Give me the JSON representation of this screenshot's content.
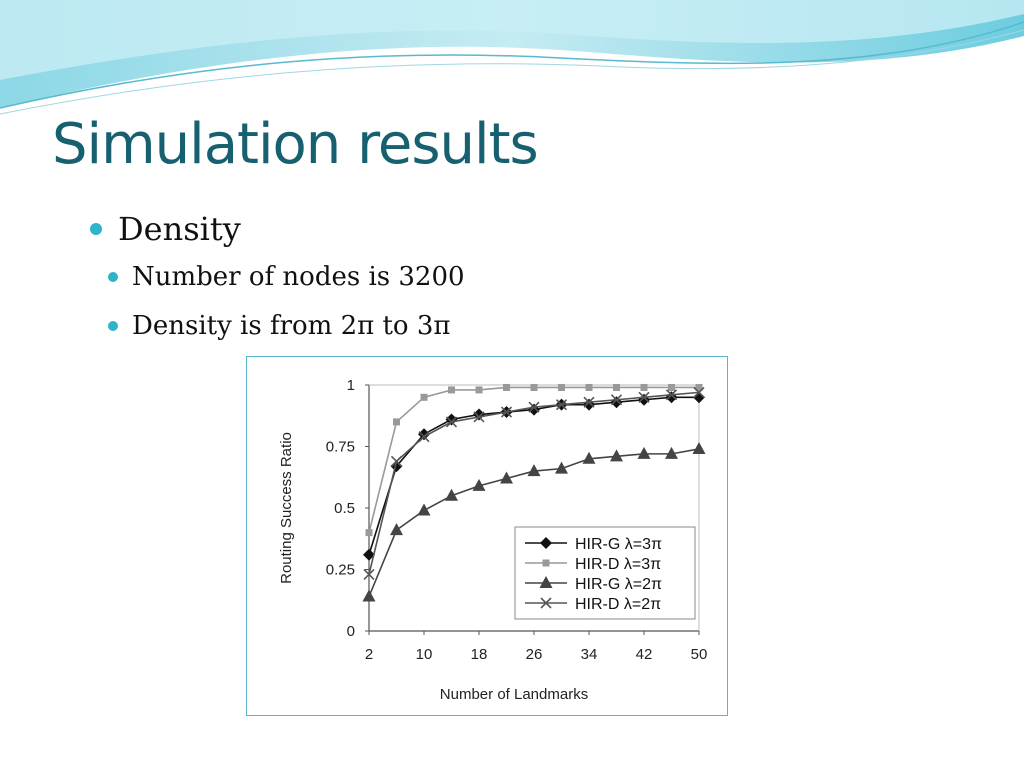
{
  "slide": {
    "title": "Simulation results",
    "bullets": {
      "main": "Density",
      "sub1": "Number of nodes is 3200",
      "sub2": "Density is from 2π to 3π"
    }
  },
  "colors": {
    "title": "#17606f",
    "bullet": "#2fb3c8",
    "frame": "#59b6cf"
  },
  "chart_data": {
    "type": "line",
    "xlabel": "Number of Landmarks",
    "ylabel": "Routing Success Ratio",
    "x_ticks": [
      "2",
      "10",
      "18",
      "26",
      "34",
      "42",
      "50"
    ],
    "y_ticks": [
      "0",
      "0.25",
      "0.5",
      "0.75",
      "1"
    ],
    "xlim": [
      2,
      50
    ],
    "ylim": [
      0,
      1
    ],
    "legend_position": "bottom-right",
    "x": [
      2,
      6,
      10,
      14,
      18,
      22,
      26,
      30,
      34,
      38,
      42,
      46,
      50
    ],
    "series": [
      {
        "name": "HIR-G λ=3π",
        "marker": "diamond",
        "color": "#111111",
        "values": [
          0.31,
          0.67,
          0.8,
          0.86,
          0.88,
          0.89,
          0.9,
          0.92,
          0.92,
          0.93,
          0.94,
          0.95,
          0.95
        ]
      },
      {
        "name": "HIR-D λ=3π",
        "marker": "square",
        "color": "#999999",
        "values": [
          0.4,
          0.85,
          0.95,
          0.98,
          0.98,
          0.99,
          0.99,
          0.99,
          0.99,
          0.99,
          0.99,
          0.99,
          0.99
        ]
      },
      {
        "name": "HIR-G λ=2π",
        "marker": "triangle",
        "color": "#444444",
        "values": [
          0.14,
          0.41,
          0.49,
          0.55,
          0.59,
          0.62,
          0.65,
          0.66,
          0.7,
          0.71,
          0.72,
          0.72,
          0.74
        ]
      },
      {
        "name": "HIR-D λ=2π",
        "marker": "x",
        "color": "#555555",
        "values": [
          0.23,
          0.69,
          0.79,
          0.85,
          0.87,
          0.89,
          0.91,
          0.92,
          0.93,
          0.94,
          0.95,
          0.96,
          0.97
        ]
      }
    ]
  }
}
